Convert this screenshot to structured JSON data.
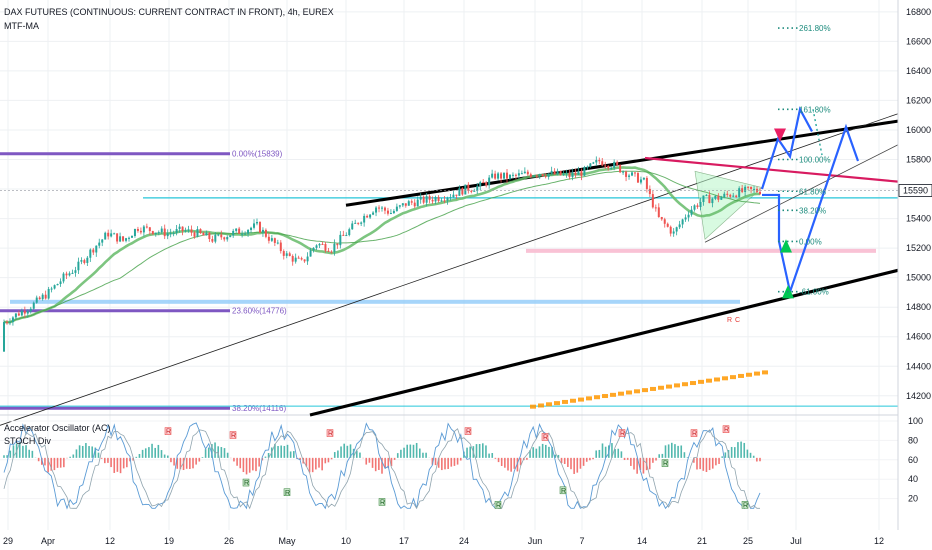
{
  "header": {
    "title": "DAX FUTURES (CONTINUOUS: CURRENT CONTRACT IN FRONT), 4h, EUREX",
    "indicator": "MTF-MA"
  },
  "oscillator": {
    "title": "Accelerator Oscillator (AC)",
    "subtitle": "STOCH Div",
    "labels": [
      "100",
      "80",
      "60",
      "40",
      "20"
    ],
    "badge_label": "R",
    "bull_badge_label": "R"
  },
  "colors": {
    "bull": "#26a69a",
    "bear": "#ef5350",
    "fib_text": "#1e8c7e",
    "purple": "#7e57c2",
    "channel": "#000000",
    "projection": "#2962ff",
    "accent_pink": "#e91e63",
    "accent_green": "#00c853",
    "orange": "#ff9800"
  },
  "chart_data": {
    "type": "candlestick",
    "symbol": "DAX FUTURES (CONTINUOUS: CURRENT CONTRACT IN FRONT)",
    "interval": "4h",
    "exchange": "EUREX",
    "last_price": "15590",
    "x_tick_labels": [
      "29",
      "Apr",
      "12",
      "19",
      "26",
      "May",
      "10",
      "17",
      "24",
      "Jun",
      "7",
      "14",
      "21",
      "25",
      "Jul",
      "12"
    ],
    "y_tick_labels": [
      "16800",
      "16600",
      "16400",
      "16200",
      "16000",
      "15800",
      "15600",
      "15400",
      "15200",
      "15000",
      "14800",
      "14600",
      "14400",
      "14200"
    ],
    "ylim": [
      14070,
      16880
    ],
    "fib_levels": [
      {
        "label": "261.80%",
        "price": 16690
      },
      {
        "label": "161.80%",
        "price": 16140
      },
      {
        "label": "100.00%",
        "price": 15800
      },
      {
        "label": "61.80%",
        "price": 15585
      },
      {
        "label": "38.20%",
        "price": 15456
      },
      {
        "label": "0.00%",
        "price": 15245
      },
      {
        "label": "-61.00%",
        "price": 14905
      }
    ],
    "horizontal_levels": [
      {
        "label": "0.00%(15839)",
        "price": 15839
      },
      {
        "label": "23.60%(14776)",
        "price": 14776
      },
      {
        "label": "38.20%(14116)",
        "price": 14116
      }
    ],
    "extra_labels": [
      "R",
      "C"
    ],
    "series": [
      {
        "name": "close",
        "values": [
          14700,
          14760,
          14820,
          14900,
          15000,
          15080,
          15200,
          15300,
          15250,
          15340,
          15320,
          15300,
          15320,
          15300,
          15260,
          15290,
          15320,
          15350,
          15250,
          15150,
          15100,
          15230,
          15200,
          15300,
          15400,
          15480,
          15440,
          15500,
          15520,
          15540,
          15560,
          15600,
          15620,
          15690,
          15680,
          15700,
          15710,
          15700,
          15690,
          15720,
          15790,
          15760,
          15700,
          15650,
          15400,
          15300,
          15450,
          15530,
          15540,
          15570,
          15590
        ]
      }
    ]
  }
}
